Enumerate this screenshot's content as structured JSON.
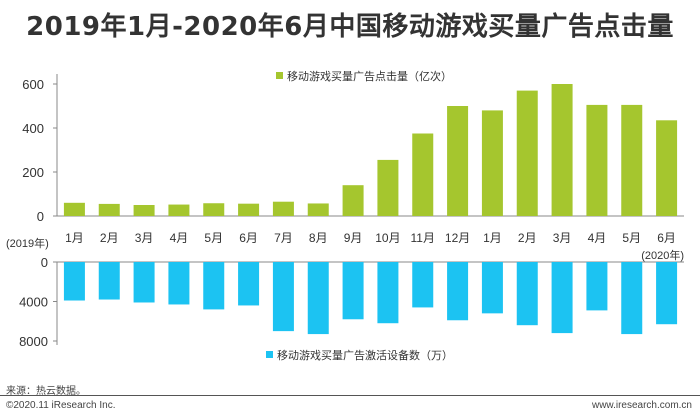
{
  "title": "2019年1月-2020年6月中国移动游戏买量广告点击量",
  "footer": {
    "source": "来源：热云数据。",
    "copyright": "©2020.11 iResearch Inc.",
    "website": "www.iresearch.com.cn"
  },
  "colors": {
    "top_series": "#a5c62e",
    "bottom_series": "#1cc3f2",
    "axis": "#888888"
  },
  "chart_data": [
    {
      "type": "bar",
      "categories": [
        "1月",
        "2月",
        "3月",
        "4月",
        "5月",
        "6月",
        "7月",
        "8月",
        "9月",
        "10月",
        "11月",
        "12月",
        "1月",
        "2月",
        "3月",
        "4月",
        "5月",
        "6月"
      ],
      "year_labels": {
        "start": "(2019年)",
        "end": "(2020年)"
      },
      "series": [
        {
          "name": "移动游戏买量广告点击量（亿次）",
          "values": [
            60,
            55,
            50,
            52,
            58,
            56,
            65,
            57,
            140,
            255,
            375,
            500,
            480,
            570,
            600,
            505,
            505,
            435
          ]
        }
      ],
      "ylim": [
        0,
        600
      ],
      "yticks": [
        0,
        200,
        400,
        600
      ],
      "legend": "top"
    },
    {
      "type": "bar",
      "categories": [
        "1月",
        "2月",
        "3月",
        "4月",
        "5月",
        "6月",
        "7月",
        "8月",
        "9月",
        "10月",
        "11月",
        "12月",
        "1月",
        "2月",
        "3月",
        "4月",
        "5月",
        "6月"
      ],
      "series": [
        {
          "name": "移动游戏买量广告激活设备数（万）",
          "values": [
            3900,
            3800,
            4100,
            4300,
            4800,
            4400,
            7000,
            7300,
            5800,
            6200,
            4600,
            5900,
            5200,
            6400,
            7200,
            4900,
            7300,
            6300
          ]
        }
      ],
      "ylim": [
        0,
        8000
      ],
      "yticks": [
        0,
        4000,
        8000
      ],
      "inverted": true,
      "legend": "bottom"
    }
  ]
}
